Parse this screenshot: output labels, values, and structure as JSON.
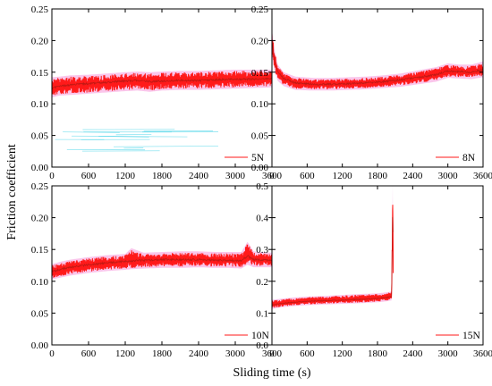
{
  "figure": {
    "ylabel": "Friction coefficient",
    "xlabel": "Sliding time (s)"
  },
  "colors": {
    "signal": "#ff1a1a",
    "signal_envelope": "#f25cc6",
    "noise": "#39d1e6",
    "mean_trace": "#8b1a10"
  },
  "chart_data": [
    {
      "type": "line",
      "legend": "5N",
      "xlim": [
        0,
        3600
      ],
      "ylim": [
        0,
        0.25
      ],
      "xticks": [
        0,
        600,
        1200,
        1800,
        2400,
        3000,
        3600
      ],
      "yticks": [
        "0.00",
        "0.05",
        "0.10",
        "0.15",
        "0.20",
        "0.25"
      ],
      "series": [
        {
          "x": [
            0,
            120,
            300,
            600,
            900,
            1200,
            1400,
            1600,
            1800,
            2100,
            2400,
            2700,
            3000,
            3300,
            3600
          ],
          "y": [
            0.125,
            0.128,
            0.13,
            0.132,
            0.134,
            0.136,
            0.137,
            0.135,
            0.136,
            0.137,
            0.137,
            0.138,
            0.139,
            0.139,
            0.14
          ],
          "y_min": [
            0.112,
            0.115,
            0.116,
            0.118,
            0.12,
            0.122,
            0.123,
            0.121,
            0.123,
            0.124,
            0.124,
            0.125,
            0.126,
            0.127,
            0.128
          ],
          "y_max": [
            0.14,
            0.141,
            0.143,
            0.144,
            0.146,
            0.148,
            0.149,
            0.148,
            0.149,
            0.15,
            0.15,
            0.151,
            0.152,
            0.152,
            0.152
          ]
        }
      ]
    },
    {
      "type": "line",
      "legend": "8N",
      "xlim": [
        0,
        3600
      ],
      "ylim": [
        0,
        0.25
      ],
      "xticks": [
        0,
        600,
        1200,
        1800,
        2400,
        3000,
        3600
      ],
      "yticks": [
        "0.00",
        "0.05",
        "0.10",
        "0.15",
        "0.20",
        "0.25"
      ],
      "series": [
        {
          "x": [
            0,
            40,
            100,
            200,
            400,
            700,
            1000,
            1300,
            1600,
            1900,
            2200,
            2500,
            2800,
            3000,
            3200,
            3400,
            3600
          ],
          "y": [
            0.2,
            0.17,
            0.15,
            0.14,
            0.133,
            0.131,
            0.131,
            0.132,
            0.133,
            0.135,
            0.138,
            0.142,
            0.146,
            0.152,
            0.151,
            0.15,
            0.154
          ],
          "y_min": [
            0.18,
            0.155,
            0.138,
            0.13,
            0.124,
            0.123,
            0.123,
            0.124,
            0.125,
            0.127,
            0.129,
            0.133,
            0.137,
            0.143,
            0.142,
            0.141,
            0.144
          ],
          "y_max": [
            0.215,
            0.185,
            0.16,
            0.148,
            0.141,
            0.139,
            0.139,
            0.14,
            0.141,
            0.143,
            0.146,
            0.151,
            0.156,
            0.162,
            0.16,
            0.16,
            0.165
          ]
        }
      ]
    },
    {
      "type": "line",
      "legend": "10N",
      "xlim": [
        0,
        3600
      ],
      "ylim": [
        0,
        0.25
      ],
      "xticks": [
        0,
        600,
        1200,
        1800,
        2400,
        3000,
        3600
      ],
      "yticks": [
        "0.00",
        "0.05",
        "0.10",
        "0.15",
        "0.20",
        "0.25"
      ],
      "series": [
        {
          "x": [
            0,
            150,
            300,
            600,
            900,
            1200,
            1300,
            1500,
            1800,
            2100,
            2400,
            2700,
            2900,
            3100,
            3200,
            3300,
            3600
          ],
          "y": [
            0.115,
            0.119,
            0.122,
            0.126,
            0.129,
            0.131,
            0.132,
            0.133,
            0.134,
            0.134,
            0.134,
            0.133,
            0.133,
            0.132,
            0.14,
            0.134,
            0.133
          ],
          "y_min": [
            0.105,
            0.108,
            0.111,
            0.115,
            0.118,
            0.12,
            0.121,
            0.122,
            0.123,
            0.123,
            0.124,
            0.123,
            0.123,
            0.122,
            0.128,
            0.124,
            0.124
          ],
          "y_max": [
            0.125,
            0.129,
            0.132,
            0.136,
            0.139,
            0.141,
            0.15,
            0.143,
            0.144,
            0.145,
            0.145,
            0.144,
            0.144,
            0.144,
            0.16,
            0.145,
            0.143
          ]
        }
      ]
    },
    {
      "type": "line",
      "legend": "15N",
      "xlim": [
        0,
        3600
      ],
      "ylim": [
        0,
        0.5
      ],
      "xticks": [
        0,
        600,
        1200,
        1800,
        2400,
        3000,
        3600
      ],
      "yticks": [
        "0.0",
        "0.1",
        "0.2",
        "0.3",
        "0.4",
        "0.5"
      ],
      "series": [
        {
          "x": [
            0,
            150,
            300,
            600,
            900,
            1200,
            1500,
            1800,
            1950,
            2040,
            2050,
            2060,
            2070
          ],
          "y": [
            0.125,
            0.13,
            0.133,
            0.137,
            0.139,
            0.141,
            0.143,
            0.146,
            0.149,
            0.152,
            0.3,
            0.47,
            0.18
          ],
          "y_min": [
            0.115,
            0.12,
            0.123,
            0.127,
            0.129,
            0.131,
            0.133,
            0.136,
            0.139,
            0.142,
            0.25,
            0.42,
            0.17
          ],
          "y_max": [
            0.14,
            0.143,
            0.146,
            0.15,
            0.152,
            0.155,
            0.158,
            0.16,
            0.163,
            0.166,
            0.35,
            0.5,
            0.2
          ]
        }
      ]
    }
  ]
}
